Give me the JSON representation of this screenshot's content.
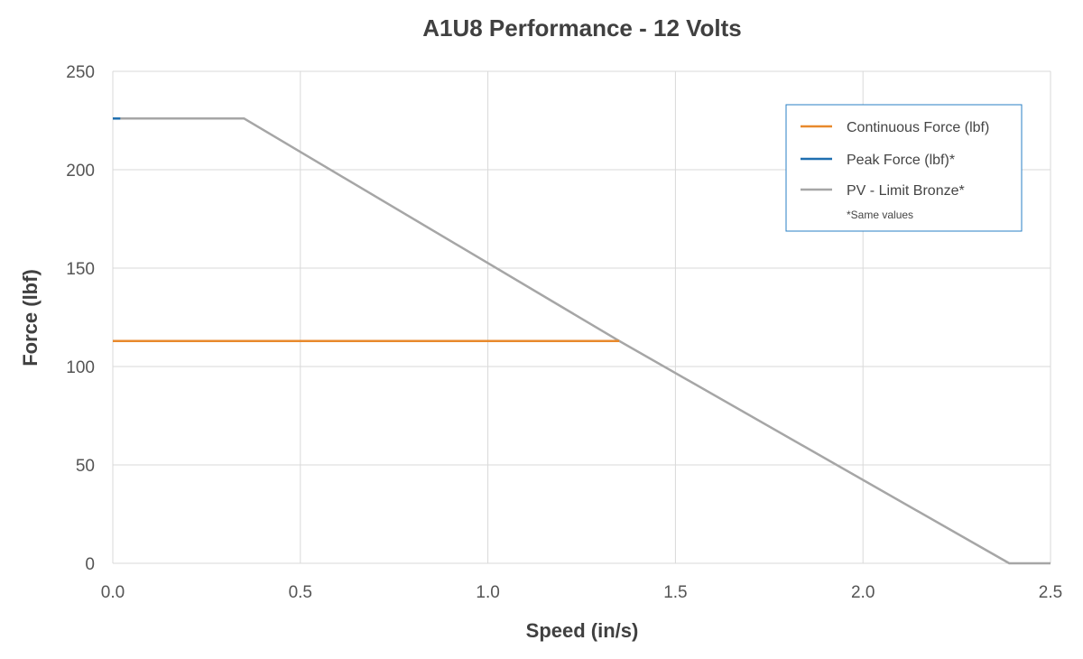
{
  "chart_data": {
    "type": "line",
    "title": "A1U8 Performance - 12 Volts",
    "xlabel": "Speed (in/s)",
    "ylabel": "Force (lbf)",
    "xlim": [
      0,
      2.5
    ],
    "ylim": [
      0,
      250
    ],
    "x_ticks": [
      "0.0",
      "0.5",
      "1.0",
      "1.5",
      "2.0",
      "2.5"
    ],
    "y_ticks": [
      "0",
      "50",
      "100",
      "150",
      "200",
      "250"
    ],
    "grid": true,
    "legend_position": "top-right",
    "series": [
      {
        "name": "Continuous Force (lbf)",
        "color": "#e8892c",
        "x": [
          0.0,
          1.35
        ],
        "y": [
          113,
          113
        ]
      },
      {
        "name": "Peak Force (lbf)*",
        "color": "#1f6fb0",
        "x": [
          0.0,
          0.02
        ],
        "y": [
          226,
          226
        ]
      },
      {
        "name": "PV - Limit Bronze*",
        "color": "#a6a6a6",
        "x": [
          0.0,
          0.35,
          1.35,
          2.39,
          2.5
        ],
        "y": [
          226,
          226,
          113,
          0,
          0
        ]
      }
    ],
    "legend_note": "*Same values"
  }
}
